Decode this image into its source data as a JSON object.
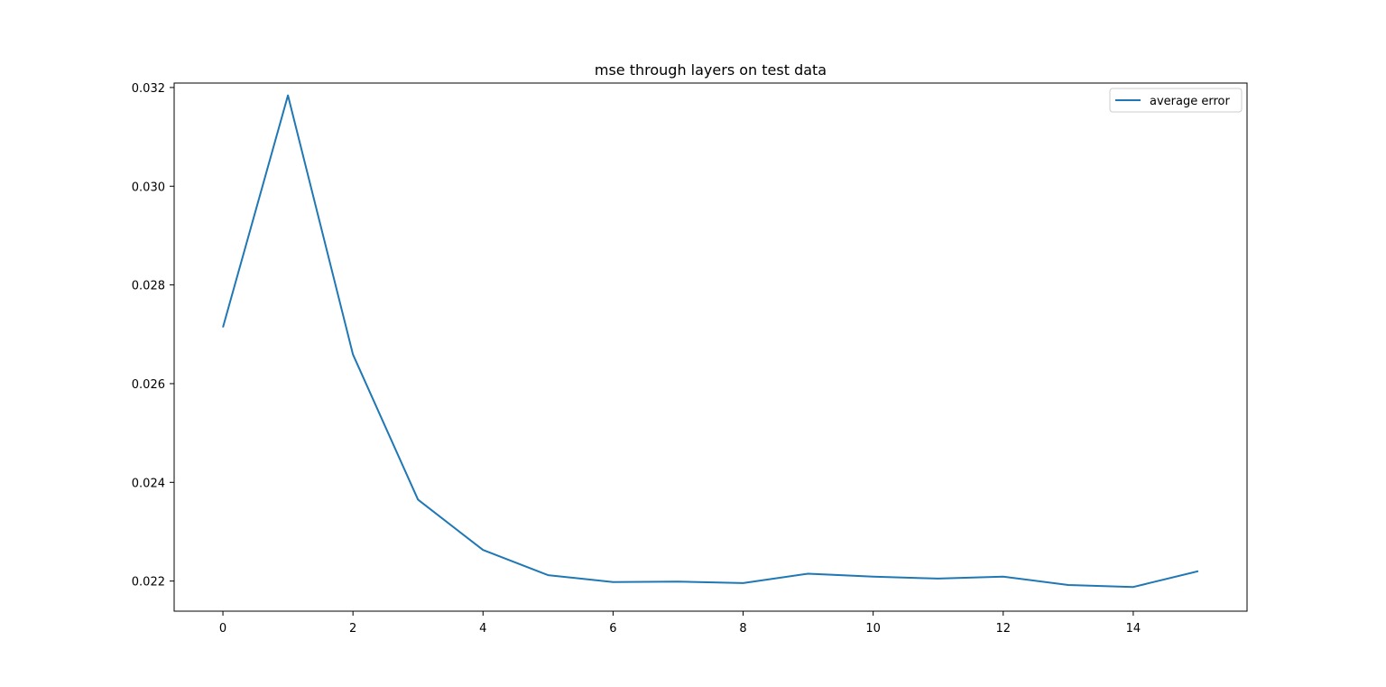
{
  "chart_data": {
    "type": "line",
    "title": "mse through layers on test data",
    "xlabel": "",
    "ylabel": "",
    "xlim": [
      -0.75,
      15.75
    ],
    "ylim": [
      0.02139,
      0.03209
    ],
    "x_ticks": [
      0,
      2,
      4,
      6,
      8,
      10,
      12,
      14
    ],
    "x_tick_labels": [
      "0",
      "2",
      "4",
      "6",
      "8",
      "10",
      "12",
      "14"
    ],
    "y_ticks": [
      0.022,
      0.024,
      0.026,
      0.028,
      0.03,
      0.032
    ],
    "y_tick_labels": [
      "0.022",
      "0.024",
      "0.026",
      "0.028",
      "0.030",
      "0.032"
    ],
    "grid": false,
    "legend_position": "top-right",
    "series": [
      {
        "name": "average error",
        "color": "#1f77b4",
        "x": [
          0,
          1,
          2,
          3,
          4,
          5,
          6,
          7,
          8,
          9,
          10,
          11,
          12,
          13,
          14,
          15
        ],
        "y": [
          0.02714,
          0.03184,
          0.02659,
          0.02365,
          0.02263,
          0.02212,
          0.02198,
          0.02199,
          0.02196,
          0.02215,
          0.02209,
          0.02205,
          0.02209,
          0.02192,
          0.02188,
          0.0222
        ]
      }
    ]
  }
}
